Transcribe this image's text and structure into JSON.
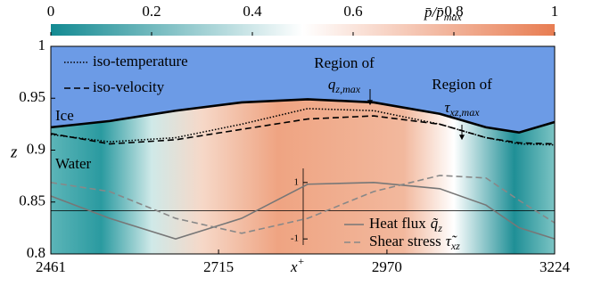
{
  "chart_data": {
    "type": "line",
    "colorbar": {
      "label": {
        "main": "p̄/p̄",
        "sub": "max"
      },
      "lim": [
        0,
        1
      ],
      "ticks": [
        0,
        0.2,
        0.4,
        0.6,
        0.8,
        1
      ],
      "colors": [
        "#138a92",
        "#ffffff",
        "#e87d52"
      ]
    },
    "y_label": "z",
    "x_label": {
      "main": "x",
      "sup": "+"
    },
    "xlim": [
      2461,
      3224
    ],
    "xticks": [
      2461,
      2715,
      2970,
      3224
    ],
    "ylim": [
      0.8,
      1
    ],
    "yticks": [
      1,
      0.95,
      0.9,
      0.85,
      0.8
    ],
    "regions": [
      "Ice",
      "Water"
    ],
    "ice_color": "#6c9be6",
    "x": [
      2461,
      2550,
      2650,
      2750,
      2850,
      2950,
      3050,
      3120,
      3170,
      3224
    ],
    "interface": {
      "color": "#000000",
      "values": [
        0.922,
        0.928,
        0.938,
        0.946,
        0.949,
        0.946,
        0.935,
        0.922,
        0.917,
        0.927
      ]
    },
    "series": [
      {
        "name": "iso-temperature",
        "color": "#000000",
        "dash": "dotted",
        "values": [
          0.915,
          0.908,
          0.912,
          0.925,
          0.94,
          0.938,
          0.925,
          0.912,
          0.906,
          0.905
        ]
      },
      {
        "name": "iso-velocity",
        "color": "#000000",
        "dash": "dashed",
        "values": [
          0.916,
          0.906,
          0.91,
          0.92,
          0.93,
          0.933,
          0.925,
          0.912,
          0.907,
          0.906
        ]
      }
    ],
    "annotations": [
      {
        "text": "Region of",
        "main": "q",
        "sub": "z,max"
      },
      {
        "text": "Region of",
        "main": "τ",
        "sub": "xz,max"
      }
    ],
    "inset": {
      "ylim": [
        -1.5,
        1.5
      ],
      "yticks": [
        1,
        -1
      ],
      "series": [
        {
          "name": {
            "text": "Heat flux",
            "main": "q̃",
            "sub": "z"
          },
          "color": "#777777",
          "dash": "solid",
          "values": [
            0.52,
            -0.27,
            -1,
            -0.27,
            0.94,
            1,
            0.78,
            0.2,
            -0.6,
            -1
          ]
        },
        {
          "name": {
            "text": "Shear stress",
            "main": "τ̃",
            "sub": "xz"
          },
          "color": "#888888",
          "dash": "dashed",
          "values": [
            1,
            0.68,
            -0.27,
            -0.8,
            -0.27,
            0.68,
            1.25,
            1.16,
            0.37,
            -0.43
          ]
        }
      ]
    }
  }
}
